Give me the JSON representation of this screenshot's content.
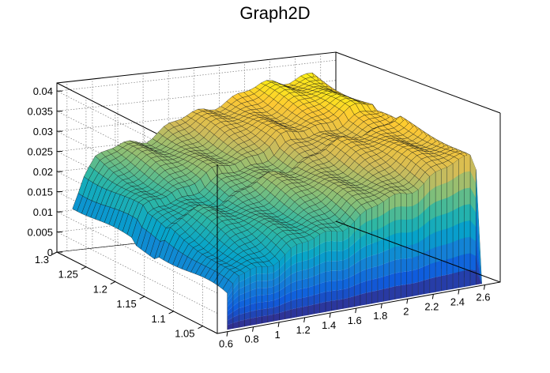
{
  "chart_data": {
    "type": "surface",
    "title": "Graph2D",
    "xlabel": "",
    "ylabel": "",
    "zlabel": "",
    "x_ticks": [
      "0.6",
      "0.8",
      "1",
      "1.2",
      "1.4",
      "1.6",
      "1.8",
      "2",
      "2.2",
      "2.4",
      "2.6"
    ],
    "y_ticks": [
      "1.05",
      "1.1",
      "1.15",
      "1.2",
      "1.25",
      "1.3"
    ],
    "z_ticks": [
      "0",
      "0.005",
      "0.01",
      "0.015",
      "0.02",
      "0.025",
      "0.03",
      "0.035",
      "0.04"
    ],
    "xlim": [
      0.52,
      2.72
    ],
    "ylim": [
      1.025,
      1.3
    ],
    "zlim": [
      0,
      0.042
    ],
    "grid": true,
    "palette": [
      "#352a87",
      "#0f5cdd",
      "#1481d6",
      "#06a4ca",
      "#2eb7a4",
      "#87bf77",
      "#d1bb59",
      "#fec832",
      "#f9fb0e"
    ],
    "z_profile_along_x": {
      "x": [
        0.62,
        0.7,
        0.8,
        0.9,
        1.0,
        1.2,
        1.4,
        1.6,
        1.8,
        2.0,
        2.2,
        2.4,
        2.55,
        2.6
      ],
      "z_at_y_min": [
        0.008,
        0.0125,
        0.0135,
        0.0145,
        0.0155,
        0.0175,
        0.0195,
        0.0215,
        0.024,
        0.026,
        0.029,
        0.031,
        0.032,
        0.0
      ],
      "z_at_y_max": [
        0.012,
        0.019,
        0.0225,
        0.024,
        0.025,
        0.0265,
        0.029,
        0.031,
        0.0335,
        0.035,
        0.0365,
        0.0375,
        0.038,
        0.0
      ]
    }
  }
}
